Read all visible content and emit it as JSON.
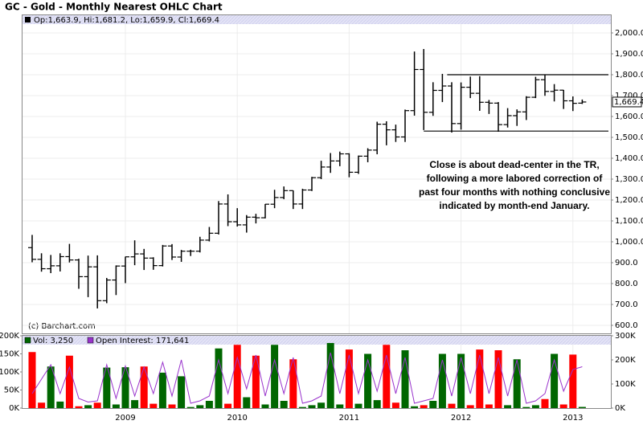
{
  "chart_data": [
    {
      "type": "ohlc",
      "title": "GC - Gold - Monthly Nearest OHLC Chart",
      "legend_text": "Op:1,663.9, Hi:1,681.2, Lo:1,659.9, Cl:1,669.4",
      "last_label": "1,669.4",
      "credit": "(c) Barchart.com",
      "annotation": [
        "Close is about dead-center in the TR,",
        "following a more labored correction of",
        "past four months with nothing conclusive",
        "indicated by month-end January."
      ],
      "categories": [
        null,
        null,
        null,
        null,
        null,
        null,
        null,
        null,
        null,
        null,
        "2009",
        null,
        null,
        null,
        null,
        null,
        null,
        null,
        null,
        null,
        null,
        null,
        "2010",
        null,
        null,
        null,
        null,
        null,
        null,
        null,
        null,
        null,
        null,
        null,
        "2011",
        null,
        null,
        null,
        null,
        null,
        null,
        null,
        null,
        null,
        null,
        null,
        "2012",
        null,
        null,
        null,
        null,
        null,
        null,
        null,
        null,
        null,
        null,
        null,
        "2013",
        null
      ],
      "open": [
        972,
        916,
        871,
        885,
        929,
        913,
        833,
        880,
        718,
        817,
        884,
        928,
        942,
        922,
        886,
        980,
        927,
        955,
        955,
        1008,
        1041,
        1181,
        1096,
        1081,
        1118,
        1115,
        1180,
        1212,
        1245,
        1181,
        1248,
        1307,
        1358,
        1387,
        1421,
        1333,
        1410,
        1439,
        1563,
        1536,
        1502,
        1628,
        1825,
        1620,
        1725,
        1746,
        1566,
        1740,
        1711,
        1668,
        1664,
        1561,
        1604,
        1622,
        1692,
        1776,
        1720,
        1726,
        1675,
        1663.9
      ],
      "high": [
        1033,
        945,
        937,
        945,
        990,
        919,
        934,
        935,
        827,
        887,
        929,
        1007,
        966,
        926,
        985,
        989,
        961,
        962,
        1024,
        1071,
        1195,
        1227,
        1161,
        1128,
        1134,
        1181,
        1249,
        1265,
        1246,
        1254,
        1311,
        1388,
        1425,
        1432,
        1424,
        1413,
        1448,
        1575,
        1577,
        1561,
        1633,
        1911,
        1923,
        1764,
        1804,
        1764,
        1763,
        1791,
        1793,
        1679,
        1669,
        1640,
        1634,
        1697,
        1790,
        1798,
        1755,
        1727,
        1696,
        1681.2
      ],
      "low": [
        902,
        857,
        850,
        858,
        901,
        775,
        735,
        681,
        706,
        745,
        802,
        888,
        865,
        866,
        882,
        913,
        904,
        932,
        949,
        1002,
        1035,
        1075,
        1073,
        1044,
        1088,
        1112,
        1161,
        1204,
        1157,
        1157,
        1243,
        1300,
        1330,
        1362,
        1309,
        1325,
        1381,
        1419,
        1462,
        1478,
        1478,
        1604,
        1535,
        1603,
        1669,
        1523,
        1537,
        1688,
        1627,
        1612,
        1527,
        1547,
        1555,
        1583,
        1688,
        1699,
        1672,
        1636,
        1626,
        1659.9
      ],
      "close": [
        916,
        871,
        885,
        929,
        913,
        833,
        880,
        718,
        817,
        884,
        928,
        942,
        922,
        886,
        980,
        927,
        955,
        955,
        1008,
        1041,
        1181,
        1096,
        1081,
        1118,
        1115,
        1180,
        1212,
        1245,
        1181,
        1248,
        1307,
        1358,
        1387,
        1421,
        1333,
        1410,
        1439,
        1563,
        1536,
        1502,
        1628,
        1825,
        1620,
        1725,
        1746,
        1566,
        1740,
        1711,
        1668,
        1664,
        1561,
        1604,
        1622,
        1692,
        1776,
        1720,
        1726,
        1675,
        1663,
        1669.4
      ],
      "color": "#000000",
      "trading_range": {
        "high": 1800,
        "low": 1530
      },
      "ylim": [
        560,
        2040
      ],
      "yticks": [
        {
          "value": 600,
          "label": "600.0"
        },
        {
          "value": 700,
          "label": "700.0"
        },
        {
          "value": 800,
          "label": "800.0"
        },
        {
          "value": 900,
          "label": "900.0"
        },
        {
          "value": 1000,
          "label": "1,000.0"
        },
        {
          "value": 1100,
          "label": "1,100.0"
        },
        {
          "value": 1200,
          "label": "1,200.0"
        },
        {
          "value": 1300,
          "label": "1,300.0"
        },
        {
          "value": 1400,
          "label": "1,400.0"
        },
        {
          "value": 1500,
          "label": "1,500.0"
        },
        {
          "value": 1600,
          "label": "1,600.0"
        },
        {
          "value": 1700,
          "label": "1,700.0"
        },
        {
          "value": 1800,
          "label": "1,800.0"
        },
        {
          "value": 1900,
          "label": "1,900.0"
        },
        {
          "value": 2000,
          "label": "2,000.0"
        }
      ],
      "grid": true
    },
    {
      "type": "volume",
      "up_color": "#006600",
      "down_color": "#ff0000",
      "series": [
        {
          "name": "Vol: 3,250",
          "color": "#006600",
          "values": [
            155000,
            15000,
            115000,
            18000,
            145000,
            5000,
            8000,
            15000,
            112000,
            10000,
            113000,
            22000,
            115000,
            12000,
            98000,
            10000,
            88000,
            3000,
            8000,
            20000,
            165000,
            12000,
            175000,
            30000,
            145000,
            10000,
            175000,
            20000,
            135000,
            3000,
            8000,
            15000,
            180000,
            10000,
            162000,
            12000,
            150000,
            22000,
            175000,
            15000,
            160000,
            5000,
            8000,
            20000,
            150000,
            12000,
            150000,
            8000,
            162000,
            10000,
            160000,
            8000,
            135000,
            3000,
            8000,
            25000,
            150000,
            10000,
            148000,
            3250
          ]
        },
        {
          "name": "Open Interest: 171,641",
          "color": "#9933cc",
          "axis": "y2",
          "values": [
            60000,
            120000,
            180000,
            60000,
            170000,
            40000,
            25000,
            30000,
            180000,
            40000,
            175000,
            50000,
            170000,
            60000,
            190000,
            50000,
            200000,
            20000,
            30000,
            50000,
            200000,
            60000,
            210000,
            80000,
            220000,
            50000,
            200000,
            60000,
            210000,
            20000,
            30000,
            50000,
            230000,
            60000,
            220000,
            60000,
            200000,
            70000,
            220000,
            60000,
            210000,
            20000,
            30000,
            40000,
            200000,
            50000,
            210000,
            60000,
            220000,
            60000,
            210000,
            50000,
            200000,
            20000,
            30000,
            60000,
            200000,
            70000,
            160000,
            171641
          ]
        }
      ],
      "ylim": [
        0,
        200000
      ],
      "yticks": [
        {
          "value": 0,
          "label": "0K"
        },
        {
          "value": 50000,
          "label": "50K"
        },
        {
          "value": 100000,
          "label": "100K"
        },
        {
          "value": 150000,
          "label": "150K"
        },
        {
          "value": 200000,
          "label": "200K"
        }
      ],
      "y2lim": [
        0,
        300000
      ],
      "y2ticks": [
        {
          "value": 0,
          "label": "0K"
        },
        {
          "value": 100000,
          "label": "100K"
        },
        {
          "value": 200000,
          "label": "200K"
        },
        {
          "value": 300000,
          "label": "300K"
        }
      ]
    }
  ]
}
